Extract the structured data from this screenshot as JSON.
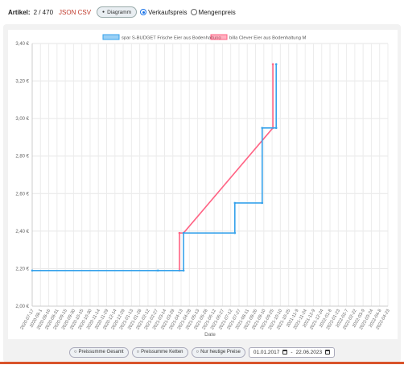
{
  "header": {
    "label": "Artikel:",
    "count": "2 / 470",
    "json_csv": "JSON CSV",
    "diagram_button": "Diagramm",
    "radio_selling": "Verkaufspreis",
    "radio_unit": "Mengenpreis"
  },
  "controls": {
    "sum_total": "Preissumme Gesamt",
    "sum_chains": "Preissumme Ketten",
    "today_only": "Nur heutige Preise",
    "date_from": "01.01.2017",
    "date_sep": "-",
    "date_to": "22.06.2023"
  },
  "colors": {
    "spar": "#36a2eb",
    "billa": "#ff6384"
  },
  "chart_data": {
    "type": "line",
    "xlabel": "Date",
    "ylabel": "",
    "ylim": [
      2.0,
      3.4
    ],
    "yticks": [
      2.0,
      2.2,
      2.4,
      2.6,
      2.8,
      3.0,
      3.2,
      3.4
    ],
    "yticklabels": [
      "2,00 €",
      "2,20 €",
      "2,40 €",
      "2,60 €",
      "2,80 €",
      "3,00 €",
      "3,20 €",
      "3,40 €"
    ],
    "categories": [
      "2020-07-17",
      "2020-08-1",
      "2020-08-16",
      "2020-08-31",
      "2020-09-15",
      "2020-09-30",
      "2020-10-15",
      "2020-10-30",
      "2020-11-14",
      "2020-11-29",
      "2020-12-14",
      "2020-12-29",
      "2021-01-13",
      "2021-01-28",
      "2021-02-12",
      "2021-02-27",
      "2021-03-14",
      "2021-03-29",
      "2021-04-13",
      "2021-04-28",
      "2021-05-13",
      "2021-05-28",
      "2021-06-12",
      "2021-06-27",
      "2021-07-12",
      "2021-07-27",
      "2021-08-11",
      "2021-08-26",
      "2021-09-10",
      "2021-09-25",
      "2021-10-10",
      "2021-10-25",
      "2021-11-9",
      "2021-11-24",
      "2021-12-9",
      "2021-12-24",
      "2022-01-8",
      "2022-01-23",
      "2022-02-7",
      "2022-02-22",
      "2022-03-9",
      "2022-03-24",
      "2022-04-8",
      "2022-04-23"
    ],
    "legend_position": "top",
    "grid": true,
    "series": [
      {
        "name": "spar S-BUDGET Frische Eier aus Bodenhaltung",
        "color": "#36a2eb",
        "points": [
          [
            0,
            2.19
          ],
          [
            15.2,
            2.19
          ],
          [
            18.3,
            2.19
          ],
          [
            18.3,
            2.39
          ],
          [
            24.5,
            2.39
          ],
          [
            24.5,
            2.55
          ],
          [
            27.8,
            2.55
          ],
          [
            27.8,
            2.95
          ],
          [
            29.5,
            2.95
          ],
          [
            29.5,
            3.29
          ]
        ]
      },
      {
        "name": "billa Clever Eier aus Bodenhaltung M",
        "color": "#ff6384",
        "points": [
          [
            17.8,
            2.19
          ],
          [
            17.8,
            2.39
          ],
          [
            18.3,
            2.39
          ],
          [
            29.1,
            2.95
          ],
          [
            29.1,
            3.29
          ]
        ]
      }
    ]
  }
}
